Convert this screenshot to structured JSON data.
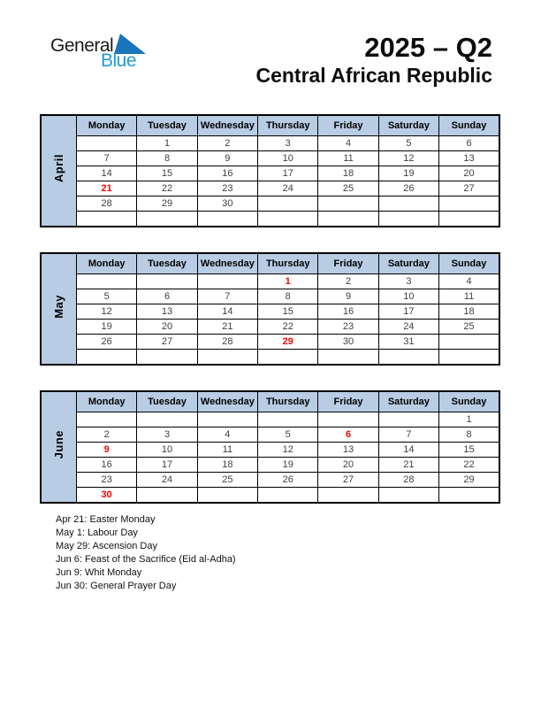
{
  "logo": {
    "general": "General",
    "blue": "Blue"
  },
  "header": {
    "title": "2025 – Q2",
    "subtitle": "Central African Republic"
  },
  "calendar": {
    "day_headers": [
      "Monday",
      "Tuesday",
      "Wednesday",
      "Thursday",
      "Friday",
      "Saturday",
      "Sunday"
    ],
    "months": [
      {
        "name": "April",
        "holiday_days": [
          21
        ],
        "rows": [
          [
            "",
            "1",
            "2",
            "3",
            "4",
            "5",
            "6"
          ],
          [
            "7",
            "8",
            "9",
            "10",
            "11",
            "12",
            "13"
          ],
          [
            "14",
            "15",
            "16",
            "17",
            "18",
            "19",
            "20"
          ],
          [
            "21",
            "22",
            "23",
            "24",
            "25",
            "26",
            "27"
          ],
          [
            "28",
            "29",
            "30",
            "",
            "",
            "",
            ""
          ],
          [
            "",
            "",
            "",
            "",
            "",
            "",
            ""
          ]
        ]
      },
      {
        "name": "May",
        "holiday_days": [
          1,
          29
        ],
        "rows": [
          [
            "",
            "",
            "",
            "1",
            "2",
            "3",
            "4"
          ],
          [
            "5",
            "6",
            "7",
            "8",
            "9",
            "10",
            "11"
          ],
          [
            "12",
            "13",
            "14",
            "15",
            "16",
            "17",
            "18"
          ],
          [
            "19",
            "20",
            "21",
            "22",
            "23",
            "24",
            "25"
          ],
          [
            "26",
            "27",
            "28",
            "29",
            "30",
            "31",
            ""
          ],
          [
            "",
            "",
            "",
            "",
            "",
            "",
            ""
          ]
        ]
      },
      {
        "name": "June",
        "holiday_days": [
          6,
          9,
          30
        ],
        "rows": [
          [
            "",
            "",
            "",
            "",
            "",
            "",
            "1"
          ],
          [
            "2",
            "3",
            "4",
            "5",
            "6",
            "7",
            "8"
          ],
          [
            "9",
            "10",
            "11",
            "12",
            "13",
            "14",
            "15"
          ],
          [
            "16",
            "17",
            "18",
            "19",
            "20",
            "21",
            "22"
          ],
          [
            "23",
            "24",
            "25",
            "26",
            "27",
            "28",
            "29"
          ],
          [
            "30",
            "",
            "",
            "",
            "",
            "",
            ""
          ]
        ]
      }
    ]
  },
  "holidays": [
    "Apr 21: Easter Monday",
    "May 1: Labour Day",
    "May 29: Ascension Day",
    "Jun 6: Feast of the Sacrifice (Eid al-Adha)",
    "Jun 9: Whit Monday",
    "Jun 30: General Prayer Day"
  ],
  "colors": {
    "header_fill": "#b8cce4",
    "holiday_red": "#ff0000",
    "day_number": "#404040",
    "logo_triangle": "#1b75bb",
    "logo_blue_text": "#1d9bd6"
  }
}
